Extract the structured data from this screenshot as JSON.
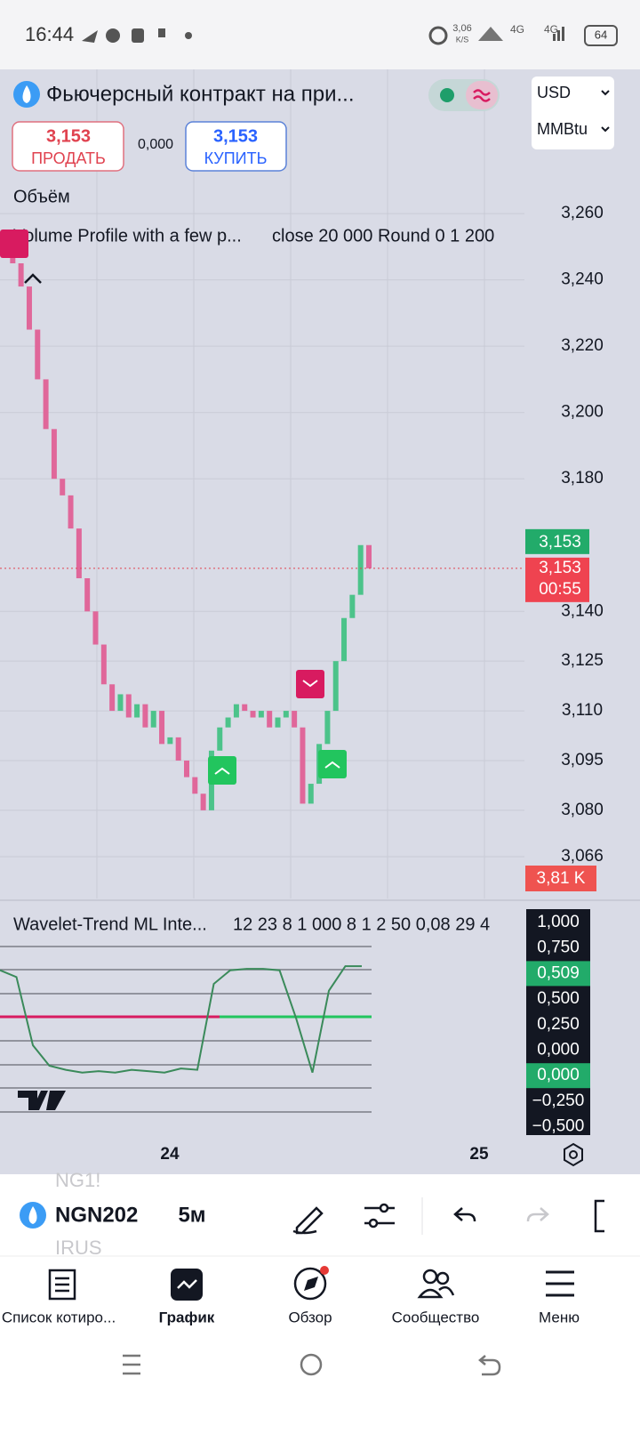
{
  "status_bar": {
    "time": "16:44",
    "net_speed": "3,06",
    "net_unit": "K/S",
    "signal_1": "4G",
    "signal_2": "4G",
    "battery": "64"
  },
  "header": {
    "title": "Фьючерсный контракт на при...",
    "currency": "USD",
    "unit": "MMBtu"
  },
  "trade": {
    "sell_price": "3,153",
    "sell_label": "ПРОДАТЬ",
    "spread": "0,000",
    "buy_price": "3,153",
    "buy_label": "КУПИТЬ"
  },
  "indicators": {
    "volume": "Объём",
    "volume_profile": "Volume Profile with a few p...",
    "volume_profile_params": "close 20 000 Round 0 1 200"
  },
  "price_chart": {
    "closes": [
      3.255,
      3.245,
      3.238,
      3.225,
      3.21,
      3.195,
      3.18,
      3.175,
      3.165,
      3.15,
      3.14,
      3.13,
      3.118,
      3.11,
      3.115,
      3.108,
      3.112,
      3.105,
      3.11,
      3.1,
      3.102,
      3.095,
      3.09,
      3.085,
      3.08,
      3.098,
      3.105,
      3.108,
      3.112,
      3.11,
      3.108,
      3.11,
      3.105,
      3.108,
      3.11,
      3.105,
      3.082,
      3.088,
      3.1,
      3.11,
      3.125,
      3.138,
      3.145,
      3.16,
      3.153
    ],
    "ylim": [
      3.0534,
      3.3035
    ],
    "yticks": [
      {
        "value": 3.26,
        "label": "3,260"
      },
      {
        "value": 3.24,
        "label": "3,240"
      },
      {
        "value": 3.22,
        "label": "3,220"
      },
      {
        "value": 3.2,
        "label": "3,200"
      },
      {
        "value": 3.18,
        "label": "3,180"
      },
      {
        "value": 3.14,
        "label": "3,140"
      },
      {
        "value": 3.125,
        "label": "3,125"
      },
      {
        "value": 3.11,
        "label": "3,110"
      },
      {
        "value": 3.095,
        "label": "3,095"
      },
      {
        "value": 3.08,
        "label": "3,080"
      },
      {
        "value": 3.066,
        "label": "3,066"
      }
    ],
    "last_price": {
      "value": 3.153,
      "label": "3,153"
    },
    "ask_label": "3,153",
    "countdown": "00:55",
    "volume": "3,81 K"
  },
  "wavelet": {
    "title": "Wavelet-Trend ML Inte...",
    "params": "12 23 8 1 000 8 1 2 50 0,08 29 4",
    "values": [
      0.65,
      0.6,
      0.1,
      -0.05,
      -0.08,
      -0.1,
      -0.09,
      -0.1,
      -0.08,
      -0.09,
      -0.1,
      -0.07,
      -0.08,
      0.55,
      0.65,
      0.66,
      0.66,
      0.65,
      0.3,
      -0.1,
      0.5,
      0.68,
      0.68
    ],
    "ylim": [
      -0.5,
      1.0
    ],
    "axis_labels": [
      "1,000",
      "0,750",
      "0,509",
      "0,500",
      "0,250",
      "0,000",
      "0,000",
      "−0,250",
      "−0,500"
    ]
  },
  "time_axis": [
    "24",
    "25"
  ],
  "toolbar": {
    "symbol": "NGN202",
    "symbol_above": "NG1!",
    "symbol_below": "IRUS",
    "interval": "5м"
  },
  "nav": [
    "Список котиро...",
    "График",
    "Обзор",
    "Сообщество",
    "Меню"
  ]
}
